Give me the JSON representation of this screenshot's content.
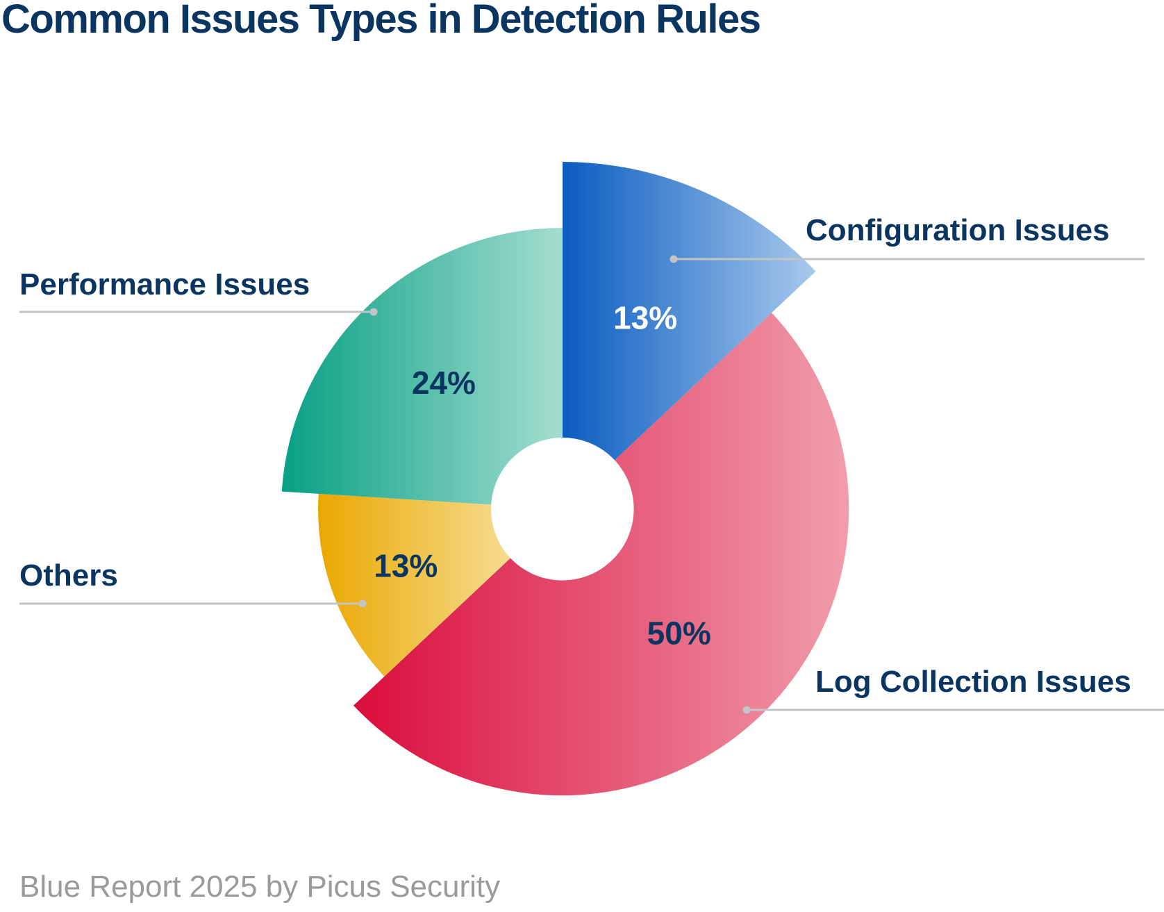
{
  "chart_data": {
    "type": "pie",
    "title": "Common Issues Types in Detection Rules",
    "source": "Blue Report 2025 by Picus Security",
    "slices": [
      {
        "label": "Configuration Issues",
        "value": 13,
        "value_label": "13%",
        "color_start": "#0a5cc0",
        "color_end": "#a8c9ec",
        "value_color": "#ffffff"
      },
      {
        "label": "Log Collection Issues",
        "value": 50,
        "value_label": "50%",
        "color_start": "#da0c3c",
        "color_end": "#f09dae",
        "value_color": "#0b3561"
      },
      {
        "label": "Others",
        "value": 13,
        "value_label": "13%",
        "color_start": "#e9a800",
        "color_end": "#f6dc91",
        "value_color": "#0b3561"
      },
      {
        "label": "Performance Issues",
        "value": 24,
        "value_label": "24%",
        "color_start": "#07a084",
        "color_end": "#a4ddcf",
        "value_color": "#0b3561"
      }
    ],
    "legend_placement": "leader-lines",
    "label_color": "#0b3561",
    "leader_color": "#c4c4c4"
  }
}
